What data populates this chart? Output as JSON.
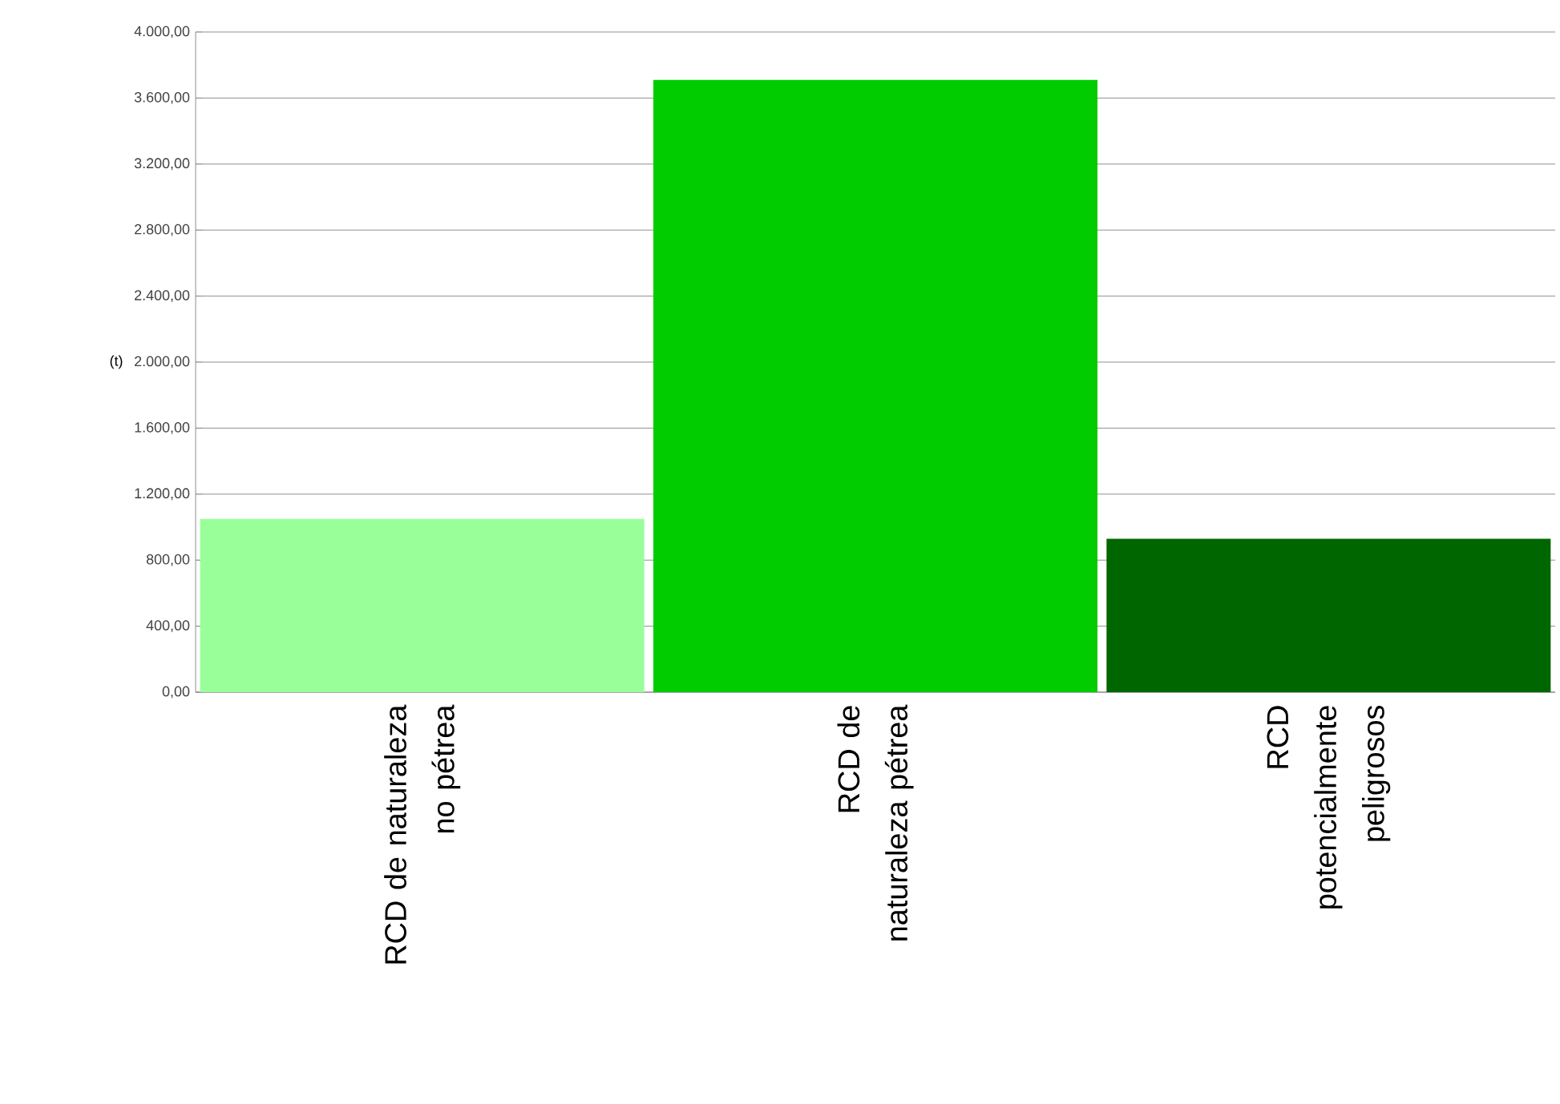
{
  "chart_data": {
    "type": "bar",
    "ylabel": "(t)",
    "categories": [
      "RCD de naturaleza no pétrea",
      "RCD de naturaleza pétrea",
      "RCD potencialmente peligrosos"
    ],
    "values": [
      1050,
      3710,
      930
    ],
    "colors": [
      "#99ff99",
      "#00cc00",
      "#006600"
    ],
    "ylim": [
      0,
      4000
    ],
    "yticks": [
      {
        "value": 0,
        "label": "0,00"
      },
      {
        "value": 400,
        "label": "400,00"
      },
      {
        "value": 800,
        "label": "800,00"
      },
      {
        "value": 1200,
        "label": "1.200,00"
      },
      {
        "value": 1600,
        "label": "1.600,00"
      },
      {
        "value": 2000,
        "label": "2.000,00"
      },
      {
        "value": 2400,
        "label": "2.400,00"
      },
      {
        "value": 2800,
        "label": "2.800,00"
      },
      {
        "value": 3200,
        "label": "3.200,00"
      },
      {
        "value": 3600,
        "label": "3.600,00"
      },
      {
        "value": 4000,
        "label": "4.000,00"
      }
    ],
    "grid": "y"
  }
}
